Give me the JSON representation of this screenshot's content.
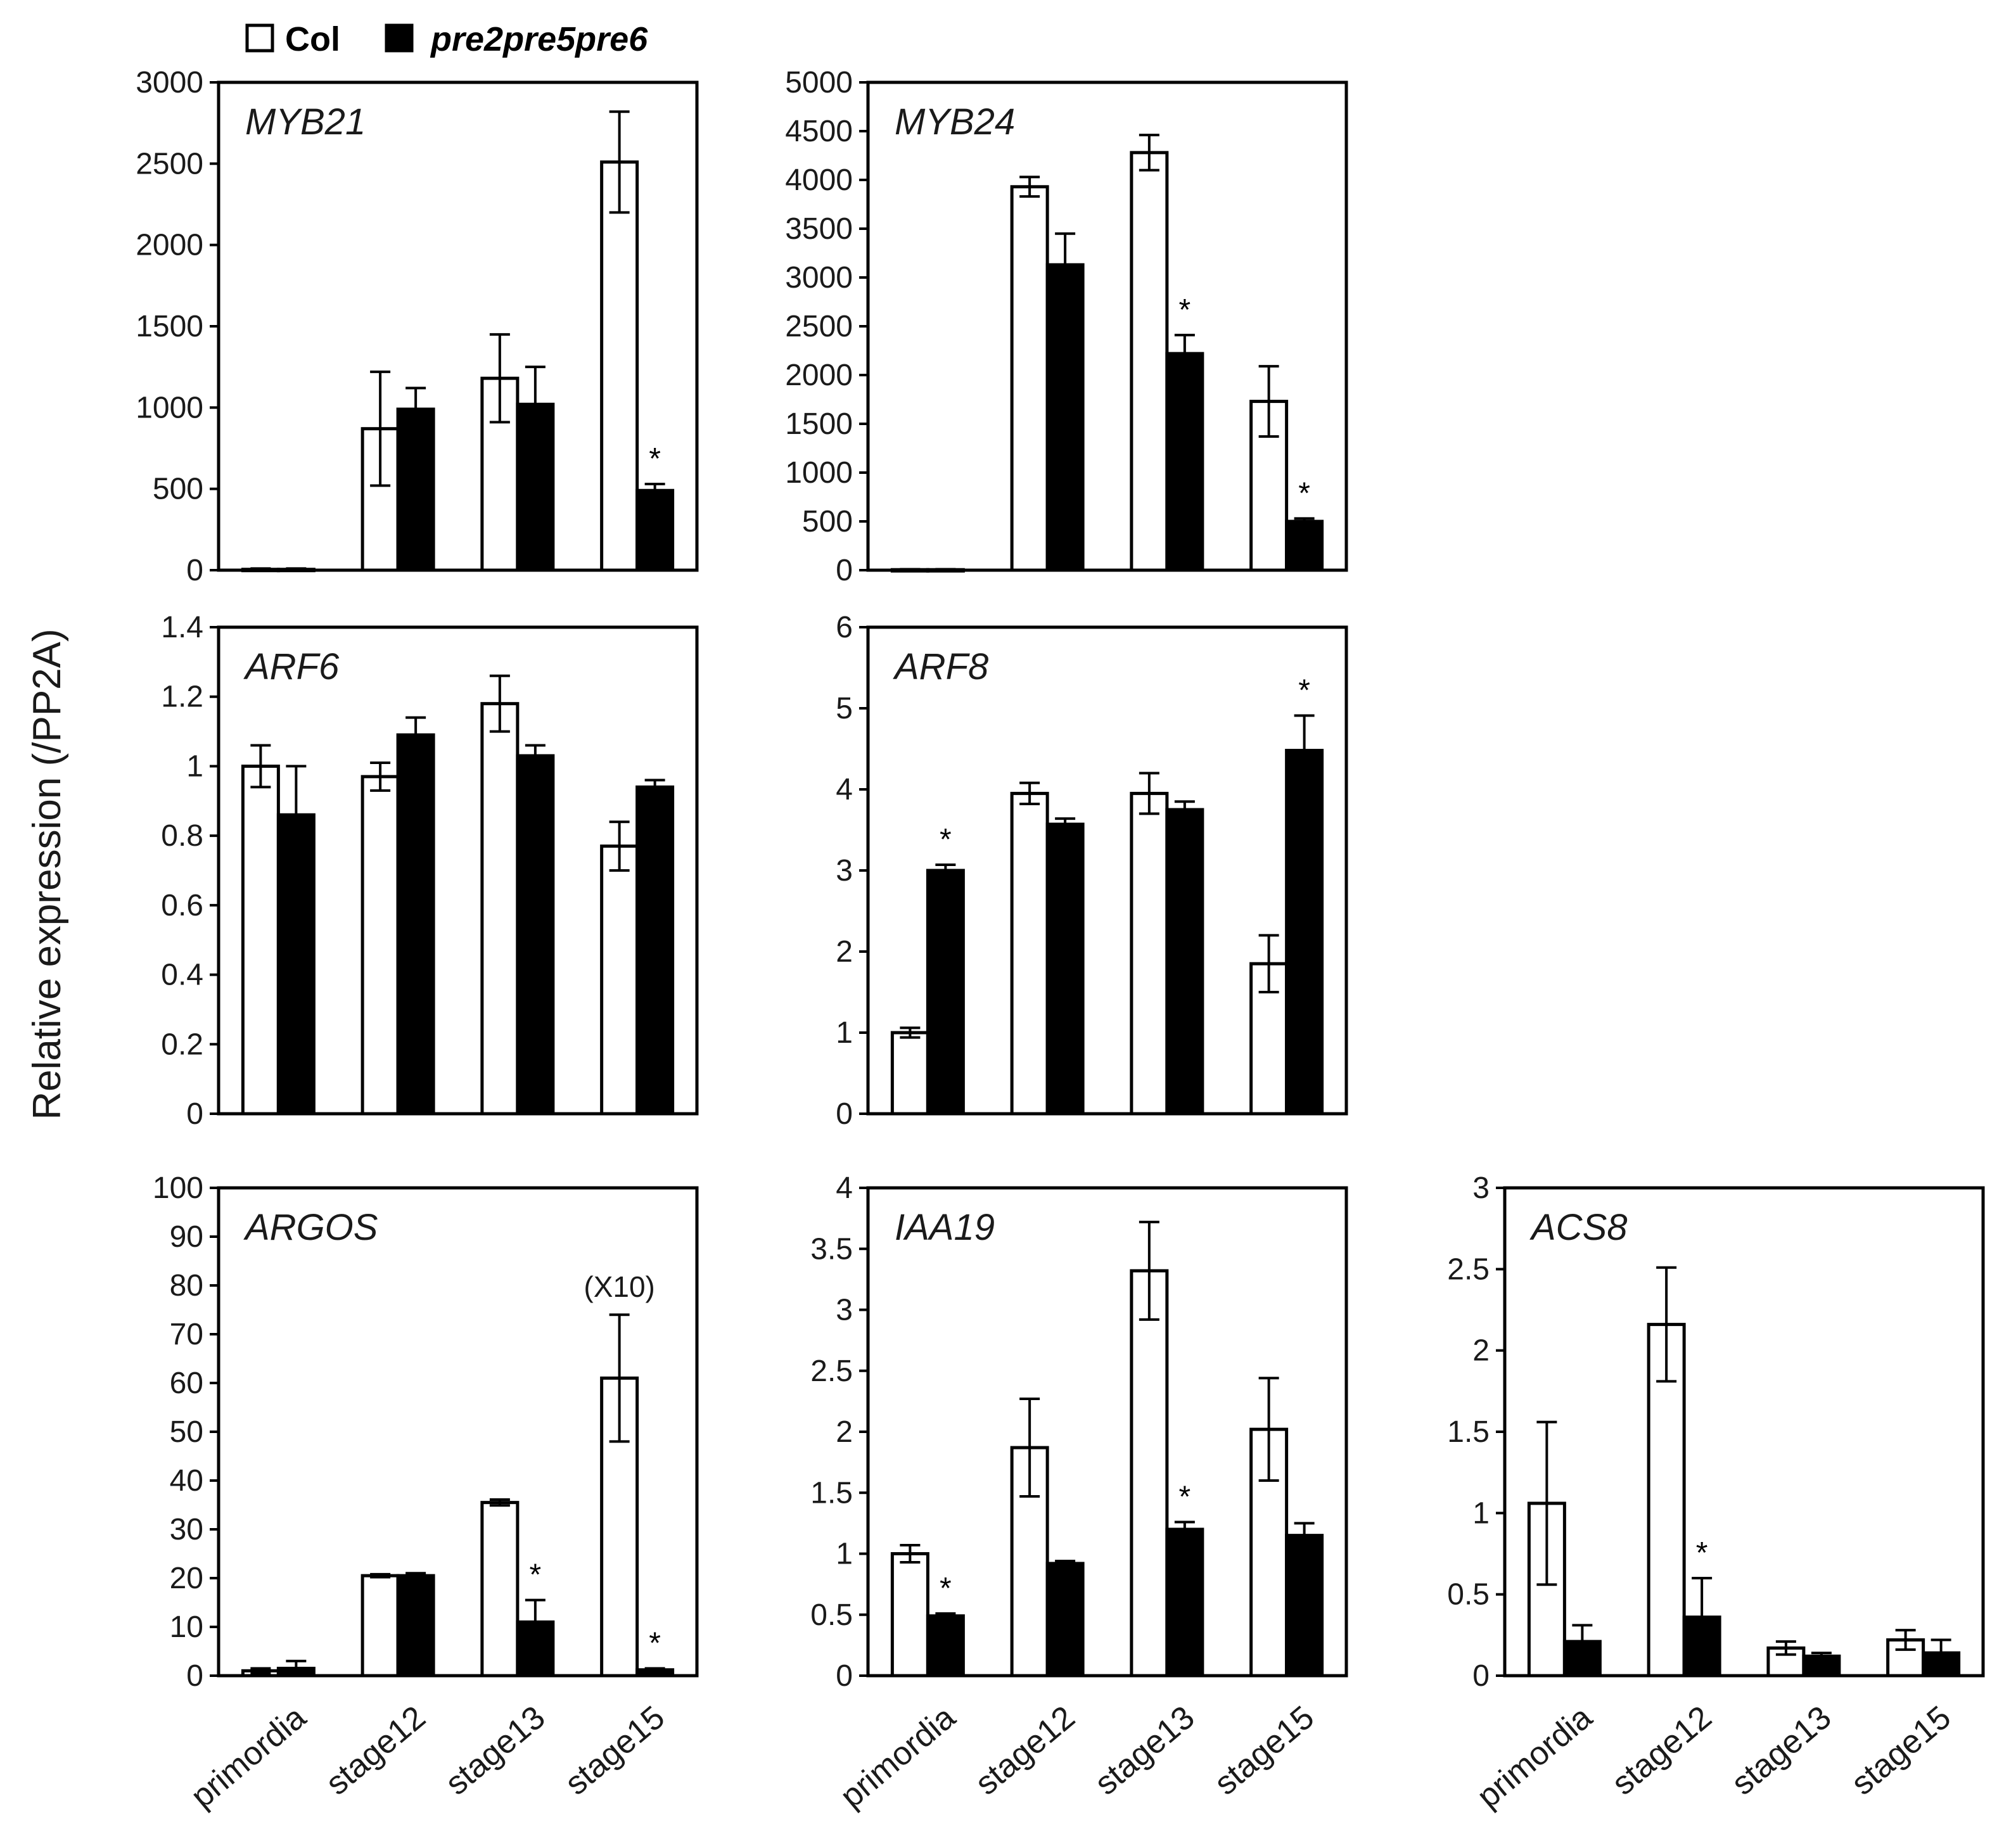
{
  "figure": {
    "ylabel": "Relative expression (/PP2A)",
    "legend": [
      {
        "name": "Col",
        "fill": "#ffffff",
        "italic": false
      },
      {
        "name": "pre2pre5pre6",
        "fill": "#000000",
        "italic": true
      }
    ],
    "colors": {
      "col": "#ffffff",
      "mutant": "#000000",
      "stroke": "#000000"
    }
  },
  "chart_data": [
    {
      "id": "myb21",
      "type": "bar",
      "title": "MYB21",
      "categories": [
        "primordia",
        "stage12",
        "stage13",
        "stage15"
      ],
      "ylim": [
        0,
        3000
      ],
      "yticks": [
        0,
        500,
        1000,
        1500,
        2000,
        2500,
        3000
      ],
      "series": [
        {
          "name": "Col",
          "values": [
            5,
            870,
            1180,
            2510
          ],
          "errors": [
            5,
            350,
            270,
            310
          ]
        },
        {
          "name": "pre2pre5pre6",
          "values": [
            5,
            990,
            1020,
            490
          ],
          "errors": [
            5,
            130,
            230,
            40
          ]
        }
      ],
      "significance": [
        {
          "category": "stage15",
          "series": "pre2pre5pre6",
          "label": "*"
        }
      ]
    },
    {
      "id": "myb24",
      "type": "bar",
      "title": "MYB24",
      "categories": [
        "primordia",
        "stage12",
        "stage13",
        "stage15"
      ],
      "ylim": [
        0,
        5000
      ],
      "yticks": [
        0,
        500,
        1000,
        1500,
        2000,
        2500,
        3000,
        3500,
        4000,
        4500,
        5000
      ],
      "series": [
        {
          "name": "Col",
          "values": [
            5,
            3930,
            4280,
            1730
          ],
          "errors": [
            5,
            100,
            180,
            360
          ]
        },
        {
          "name": "pre2pre5pre6",
          "values": [
            5,
            3130,
            2220,
            500
          ],
          "errors": [
            5,
            320,
            190,
            30
          ]
        }
      ],
      "significance": [
        {
          "category": "stage13",
          "series": "pre2pre5pre6",
          "label": "*"
        },
        {
          "category": "stage15",
          "series": "pre2pre5pre6",
          "label": "*"
        }
      ]
    },
    {
      "id": "arf6",
      "type": "bar",
      "title": "ARF6",
      "categories": [
        "primordia",
        "stage12",
        "stage13",
        "stage15"
      ],
      "ylim": [
        0,
        1.4
      ],
      "yticks": [
        "0",
        "0.2",
        "0.4",
        "0.6",
        "0.8",
        "1",
        "1.2",
        "1.4"
      ],
      "series": [
        {
          "name": "Col",
          "values": [
            1.0,
            0.97,
            1.18,
            0.77
          ],
          "errors": [
            0.06,
            0.04,
            0.08,
            0.07
          ]
        },
        {
          "name": "pre2pre5pre6",
          "values": [
            0.86,
            1.09,
            1.03,
            0.94
          ],
          "errors": [
            0.14,
            0.05,
            0.03,
            0.02
          ]
        }
      ],
      "significance": []
    },
    {
      "id": "arf8",
      "type": "bar",
      "title": "ARF8",
      "categories": [
        "primordia",
        "stage12",
        "stage13",
        "stage15"
      ],
      "ylim": [
        0,
        6
      ],
      "yticks": [
        0,
        1,
        2,
        3,
        4,
        5,
        6
      ],
      "series": [
        {
          "name": "Col",
          "values": [
            1.0,
            3.95,
            3.95,
            1.85
          ],
          "errors": [
            0.06,
            0.13,
            0.25,
            0.35
          ]
        },
        {
          "name": "pre2pre5pre6",
          "values": [
            3.0,
            3.57,
            3.75,
            4.48
          ],
          "errors": [
            0.07,
            0.07,
            0.1,
            0.43
          ]
        }
      ],
      "significance": [
        {
          "category": "primordia",
          "series": "pre2pre5pre6",
          "label": "*"
        },
        {
          "category": "stage15",
          "series": "pre2pre5pre6",
          "label": "*"
        }
      ]
    },
    {
      "id": "argos",
      "type": "bar",
      "title": "ARGOS",
      "categories": [
        "primordia",
        "stage12",
        "stage13",
        "stage15"
      ],
      "ylim": [
        0,
        100
      ],
      "yticks": [
        0,
        10,
        20,
        30,
        40,
        50,
        60,
        70,
        80,
        90,
        100
      ],
      "series": [
        {
          "name": "Col",
          "values": [
            1,
            20.5,
            35.5,
            61
          ],
          "errors": [
            0.5,
            0.3,
            0.6,
            13
          ]
        },
        {
          "name": "pre2pre5pre6",
          "values": [
            1.5,
            20.5,
            11,
            1.2
          ],
          "errors": [
            1.5,
            0.5,
            4.5,
            0.3
          ]
        }
      ],
      "significance": [
        {
          "category": "stage13",
          "series": "pre2pre5pre6",
          "label": "*"
        },
        {
          "category": "stage15",
          "series": "pre2pre5pre6",
          "label": "*"
        }
      ],
      "annotation": "(X10)"
    },
    {
      "id": "iaa19",
      "type": "bar",
      "title": "IAA19",
      "categories": [
        "primordia",
        "stage12",
        "stage13",
        "stage15"
      ],
      "ylim": [
        0,
        4
      ],
      "yticks": [
        "0",
        "0.5",
        "1",
        "1.5",
        "2",
        "2.5",
        "3",
        "3.5",
        "4"
      ],
      "series": [
        {
          "name": "Col",
          "values": [
            1.0,
            1.87,
            3.32,
            2.02
          ],
          "errors": [
            0.07,
            0.4,
            0.4,
            0.42
          ]
        },
        {
          "name": "pre2pre5pre6",
          "values": [
            0.49,
            0.92,
            1.2,
            1.15
          ],
          "errors": [
            0.02,
            0.02,
            0.06,
            0.1
          ]
        }
      ],
      "significance": [
        {
          "category": "primordia",
          "series": "pre2pre5pre6",
          "label": "*"
        },
        {
          "category": "stage13",
          "series": "pre2pre5pre6",
          "label": "*"
        }
      ]
    },
    {
      "id": "acs8",
      "type": "bar",
      "title": "ACS8",
      "categories": [
        "primordia",
        "stage12",
        "stage13",
        "stage15"
      ],
      "ylim": [
        0,
        3
      ],
      "yticks": [
        "0",
        "0.5",
        "1",
        "1.5",
        "2",
        "2.5",
        "3"
      ],
      "series": [
        {
          "name": "Col",
          "values": [
            1.06,
            2.16,
            0.17,
            0.22
          ],
          "errors": [
            0.5,
            0.35,
            0.04,
            0.06
          ]
        },
        {
          "name": "pre2pre5pre6",
          "values": [
            0.21,
            0.36,
            0.12,
            0.14
          ],
          "errors": [
            0.1,
            0.24,
            0.02,
            0.08
          ]
        }
      ],
      "significance": [
        {
          "category": "stage12",
          "series": "pre2pre5pre6",
          "label": "*"
        }
      ]
    }
  ]
}
